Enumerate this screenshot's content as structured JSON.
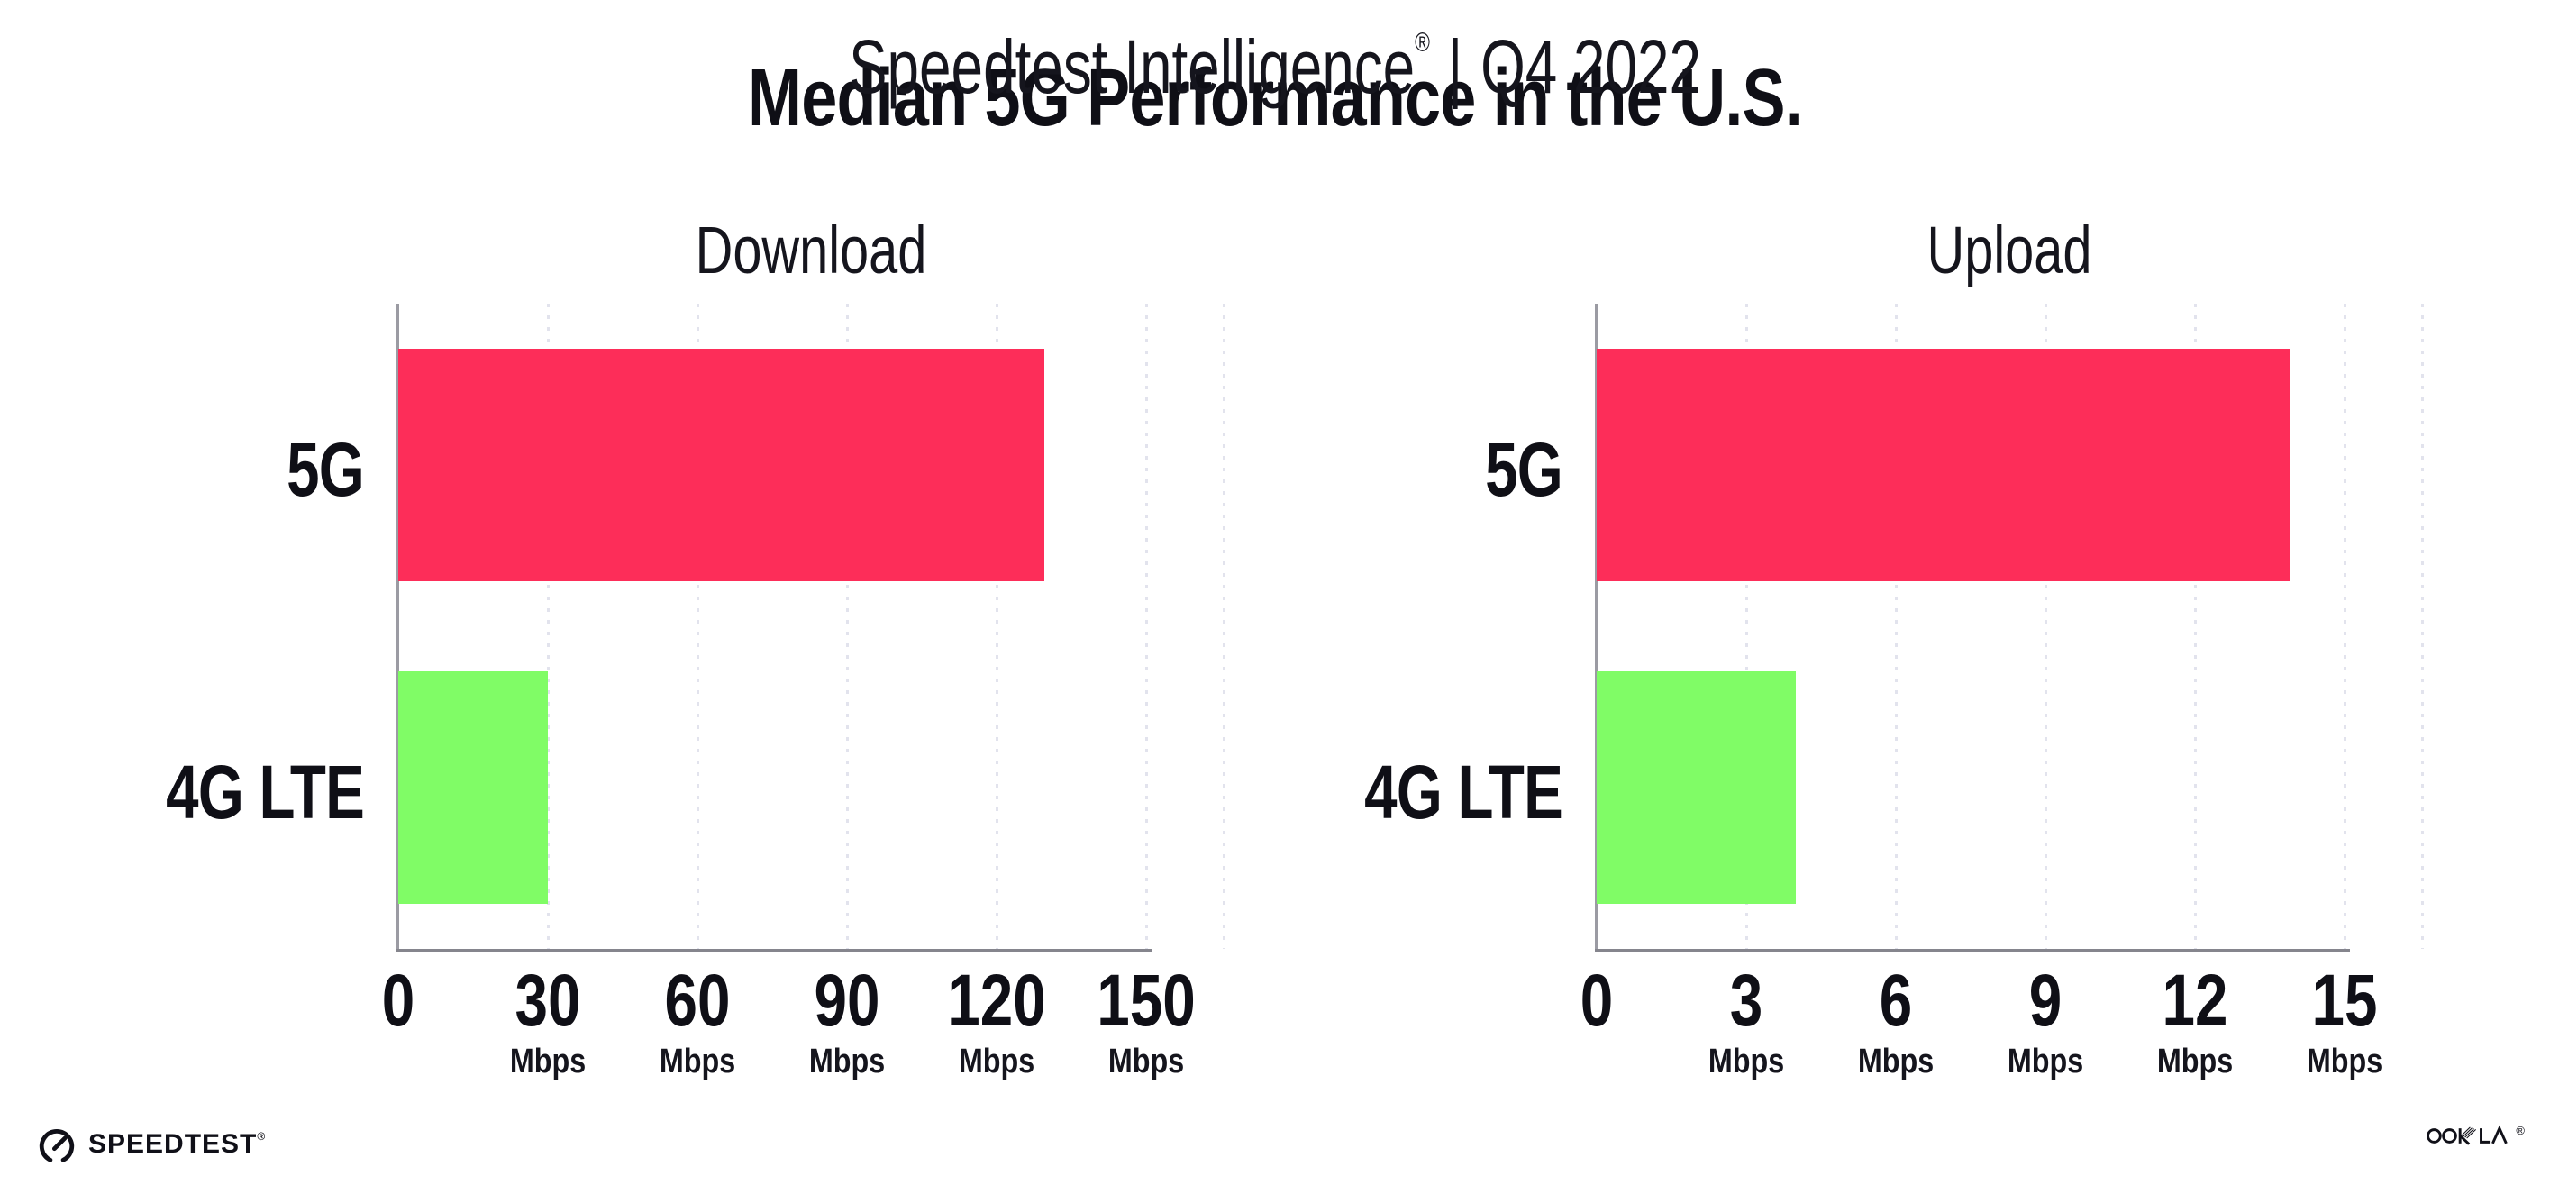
{
  "header": {
    "title": "Median 5G Performance in the U.S.",
    "subtitle": {
      "product": "Speedtest Intelligence",
      "registered_mark": "®",
      "separator": "|",
      "period": "Q4 2022"
    }
  },
  "chart_data": [
    {
      "type": "bar",
      "orientation": "horizontal",
      "title": "Download",
      "categories": [
        "5G",
        "4G LTE"
      ],
      "values": [
        129.5,
        30
      ],
      "unit": "Mbps",
      "xlim": [
        0,
        150
      ],
      "xticks": [
        0,
        30,
        60,
        90,
        120,
        150
      ],
      "tick_unit_label": "Mbps",
      "grid": "dotted-vertical",
      "legend": "none",
      "bar_colors": [
        "#fd2d59",
        "#80fc66"
      ]
    },
    {
      "type": "bar",
      "orientation": "horizontal",
      "title": "Upload",
      "categories": [
        "5G",
        "4G LTE"
      ],
      "values": [
        13.9,
        4
      ],
      "unit": "Mbps",
      "xlim": [
        0,
        15
      ],
      "xticks": [
        0,
        3,
        6,
        9,
        12,
        15
      ],
      "tick_unit_label": "Mbps",
      "grid": "dotted-vertical",
      "legend": "none",
      "bar_colors": [
        "#fd2d59",
        "#80fc66"
      ]
    }
  ],
  "footer": {
    "speedtest_logo_text": "SPEEDTEST",
    "speedtest_trademark": "®",
    "ookla_logo_text": "OOKLA",
    "ookla_trademark": "®"
  },
  "colors": {
    "bar_5g": "#fd2d59",
    "bar_4g_lte": "#80fc66",
    "text": "#0f0f16",
    "gridline_dots": "#e2e3ed",
    "y_axis_spine": "#9b9ba3",
    "x_axis_line": "#85858d",
    "background": "#ffffff"
  }
}
